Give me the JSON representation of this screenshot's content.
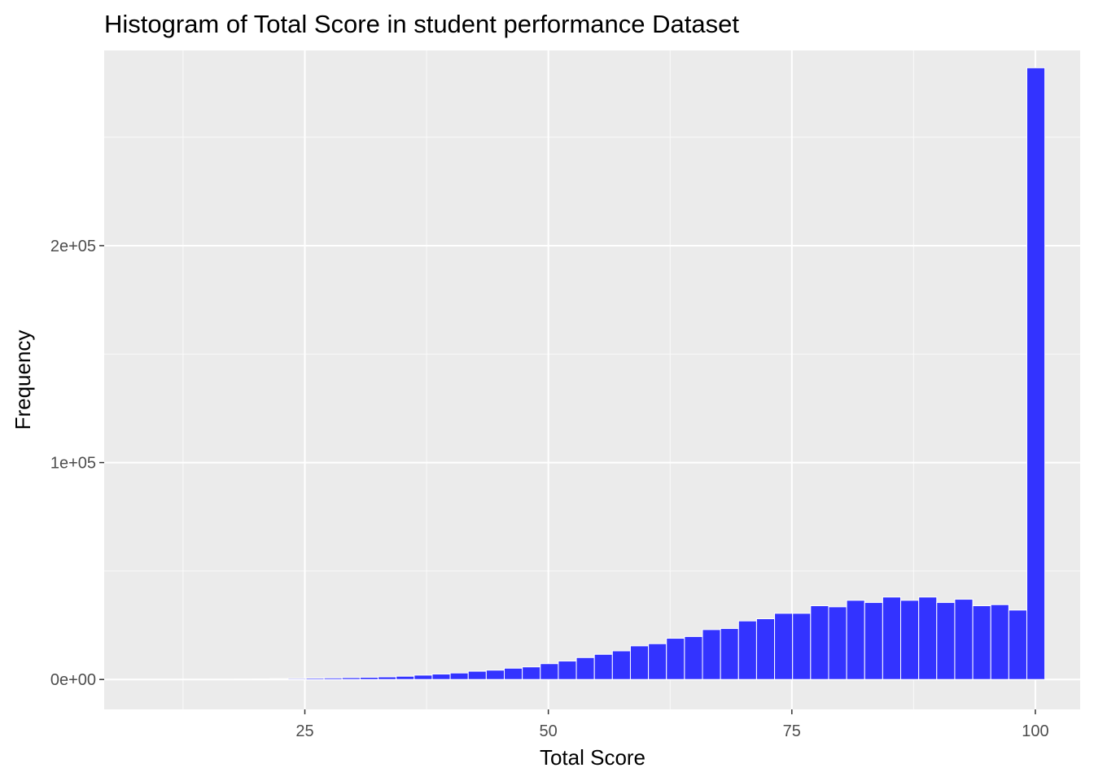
{
  "chart_data": {
    "type": "bar",
    "title": "Histogram of Total Score in student performance Dataset",
    "xlabel": "Total Score",
    "ylabel": "Frequency",
    "xlim": [
      4.4,
      104.6
    ],
    "ylim": [
      -13800,
      290000
    ],
    "x_ticks": [
      25,
      50,
      75,
      100
    ],
    "x_tick_labels": [
      "25",
      "50",
      "75",
      "100"
    ],
    "y_ticks": [
      0,
      100000,
      200000
    ],
    "y_tick_labels": [
      "0e+00",
      "1e+05",
      "2e+05"
    ],
    "x_minor_ticks": [
      12.5,
      37.5,
      62.5,
      87.5
    ],
    "y_minor_ticks": [
      50000,
      150000,
      250000
    ],
    "bin_width": 1.85,
    "bin_centers": [
      16.8,
      18.65,
      20.5,
      22.35,
      24.2,
      26.05,
      27.9,
      29.75,
      31.6,
      33.45,
      35.3,
      37.15,
      39.0,
      40.85,
      42.7,
      44.55,
      46.4,
      48.25,
      50.1,
      51.95,
      53.8,
      55.65,
      57.5,
      59.35,
      61.2,
      63.05,
      64.9,
      66.75,
      68.6,
      70.45,
      72.3,
      74.15,
      76.0,
      77.85,
      79.7,
      81.55,
      83.4,
      85.25,
      87.1,
      88.95,
      90.8,
      92.65,
      94.5,
      96.35,
      98.2,
      100.05
    ],
    "values": [
      80,
      150,
      250,
      350,
      450,
      600,
      700,
      850,
      1000,
      1200,
      1500,
      2000,
      2500,
      3000,
      3800,
      4300,
      5200,
      5800,
      7300,
      8500,
      10100,
      11600,
      13200,
      15500,
      16500,
      19000,
      19800,
      23000,
      23500,
      27000,
      28000,
      30500,
      30500,
      34000,
      33500,
      36500,
      35500,
      38000,
      36500,
      38000,
      35500,
      37000,
      34000,
      34500,
      32000,
      282000
    ],
    "bar_color": "#3333ff",
    "bar_edge_color": "#ffffff",
    "panel_background": "#ebebeb",
    "grid": true,
    "legend": "none"
  }
}
